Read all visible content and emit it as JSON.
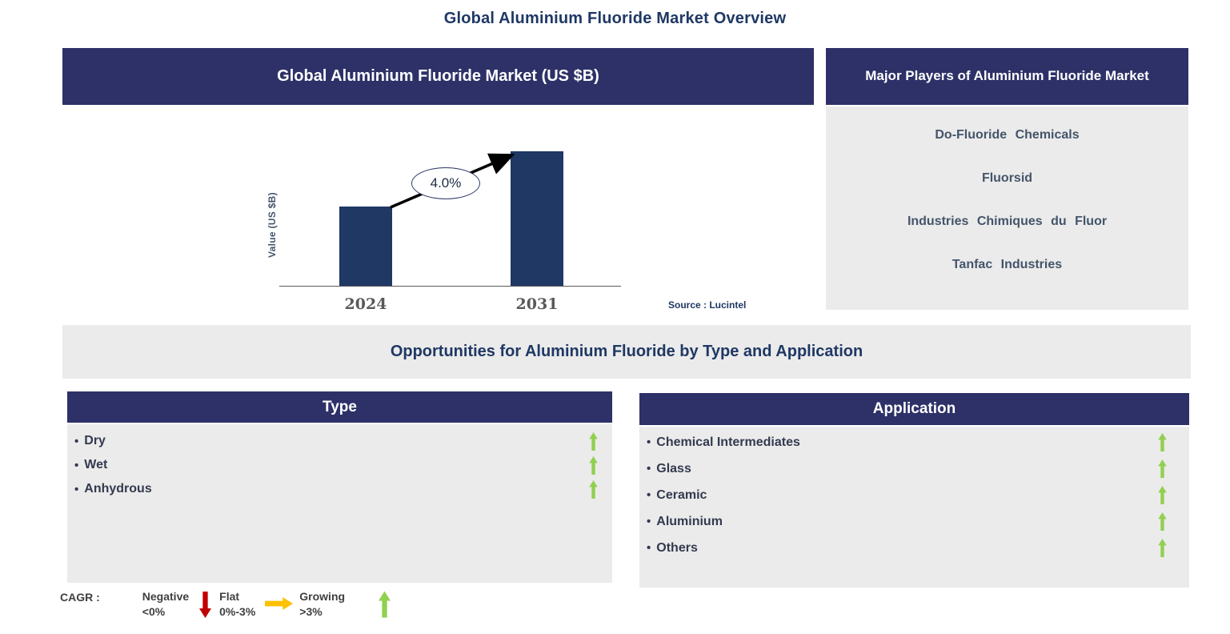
{
  "page": {
    "title": "Global Aluminium Fluoride Market Overview"
  },
  "market_chart": {
    "header": "Global Aluminium Fluoride Market (US $B)",
    "y_axis_label": "Value (US $B)",
    "cagr_label": "4.0%",
    "source": "Source : Lucintel"
  },
  "chart_data": {
    "type": "bar",
    "title": "Global Aluminium Fluoride Market (US $B)",
    "categories": [
      "2024",
      "2031"
    ],
    "values": [
      1.0,
      1.7
    ],
    "values_note": "relative heights; no numeric axis shown",
    "xlabel": "",
    "ylabel": "Value (US $B)",
    "bar_color": "#1F3864",
    "annotation": "4.0% CAGR arrow from 2024 bar to 2031 bar",
    "grid": false,
    "legend": false
  },
  "major_players": {
    "header": "Major Players of Aluminium Fluoride Market",
    "items": [
      "Do-Fluoride Chemicals",
      "Fluorsid",
      "Industries Chimiques du Fluor",
      "Tanfac Industries"
    ]
  },
  "opportunities": {
    "title": "Opportunities for Aluminium Fluoride by Type and Application"
  },
  "type_panel": {
    "header": "Type",
    "bullet": "•",
    "items": [
      {
        "label": "Dry",
        "trend": "growing"
      },
      {
        "label": "Wet",
        "trend": "growing"
      },
      {
        "label": "Anhydrous",
        "trend": "growing"
      }
    ]
  },
  "application_panel": {
    "header": "Application",
    "bullet": "•",
    "items": [
      {
        "label": "Chemical Intermediates",
        "trend": "growing"
      },
      {
        "label": "Glass",
        "trend": "growing"
      },
      {
        "label": "Ceramic",
        "trend": "growing"
      },
      {
        "label": "Aluminium",
        "trend": "growing"
      },
      {
        "label": "Others",
        "trend": "growing"
      }
    ]
  },
  "legend": {
    "prefix": "CAGR :",
    "entries": [
      {
        "label": "Negative",
        "range": "<0%",
        "direction": "down",
        "color": "#C00000"
      },
      {
        "label": "Flat",
        "range": "0%-3%",
        "direction": "right",
        "color": "#FFC000"
      },
      {
        "label": "Growing",
        "range": ">3%",
        "direction": "up",
        "color": "#92D050"
      }
    ]
  },
  "colors": {
    "header_navy": "#2D3168",
    "bar_navy": "#1F3864",
    "panel_gray": "#EBEBEB",
    "growing_green": "#92D050",
    "negative_red": "#C00000",
    "flat_yellow": "#FFC000"
  }
}
